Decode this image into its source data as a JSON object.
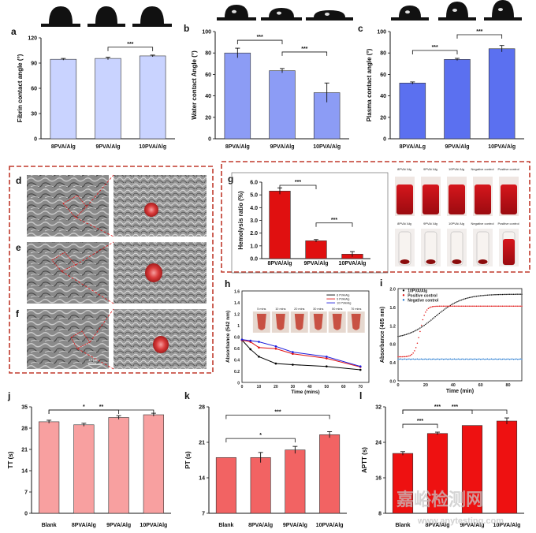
{
  "figure": {
    "colors": {
      "panel_red_dashed": "#c0392b",
      "wm": "#c6c6c6"
    },
    "watermark": {
      "cn": "嘉峪检测网",
      "url": "www.anytesting.com"
    }
  },
  "chart_data": [
    {
      "id": "a",
      "type": "bar",
      "categories": [
        "8PVA/Alg",
        "9PVA/Alg",
        "10PVA/Alg"
      ],
      "values": [
        94.5,
        95.5,
        98.5
      ],
      "errors": [
        1,
        1.5,
        1
      ],
      "ylabel": "Fibrin contact angle (°)",
      "ylim": [
        0,
        120
      ],
      "yticks": [
        0,
        30,
        60,
        90,
        120
      ],
      "color": "#c9d3ff",
      "sig": [
        {
          "from": 1,
          "to": 2,
          "label": "***"
        }
      ]
    },
    {
      "id": "b",
      "type": "bar",
      "categories": [
        "8PVA/Alg",
        "9PVA/Alg",
        "10PVA/Alg"
      ],
      "values": [
        80,
        63.5,
        43
      ],
      "errors": [
        4.5,
        2,
        9
      ],
      "ylabel": "Water contact Angle (°)",
      "ylim": [
        0,
        100
      ],
      "yticks": [
        0,
        20,
        40,
        60,
        80,
        100
      ],
      "color": "#8c9cf5",
      "sig": [
        {
          "from": 0,
          "to": 1,
          "label": "***"
        },
        {
          "from": 1,
          "to": 2,
          "label": "***"
        }
      ]
    },
    {
      "id": "c",
      "type": "bar",
      "categories": [
        "8PVA/ALg",
        "9PVA/Alg",
        "10PVA/Alg"
      ],
      "values": [
        52,
        74,
        84
      ],
      "errors": [
        1,
        1,
        3
      ],
      "ylabel": "Plasma contact angle (°)",
      "ylim": [
        0,
        100
      ],
      "yticks": [
        0,
        20,
        40,
        60,
        80,
        100
      ],
      "color": "#5b70f0",
      "sig": [
        {
          "from": 0,
          "to": 1,
          "label": "***"
        },
        {
          "from": 1,
          "to": 2,
          "label": "***"
        }
      ]
    },
    {
      "id": "g",
      "type": "bar",
      "categories": [
        "8PVA/Alg",
        "9PVA/Alg",
        "10PVA/Alg"
      ],
      "values": [
        5.3,
        1.4,
        0.35
      ],
      "errors": [
        0.25,
        0.1,
        0.2
      ],
      "ylabel": "Hemolysis ratio (%)",
      "ylim": [
        0,
        6
      ],
      "yticks": [
        0,
        1,
        2,
        3,
        4,
        5,
        6
      ],
      "yticklabels": [
        "0.0",
        "1.0",
        "2.0",
        "3.0",
        "4.0",
        "5.0",
        "6.0"
      ],
      "color": "#e01010",
      "sig": [
        {
          "from": 0,
          "to": 1,
          "label": "***"
        },
        {
          "from": 1,
          "to": 2,
          "label": "***"
        }
      ]
    },
    {
      "id": "h",
      "type": "line",
      "xlabel": "Time (mins)",
      "ylabel": "Absorbance (542 nm)",
      "xlim": [
        0,
        75
      ],
      "ylim": [
        0,
        1.6
      ],
      "xticks": [
        0,
        10,
        20,
        30,
        40,
        50,
        60,
        70
      ],
      "yticks": [
        0,
        0.2,
        0.4,
        0.6,
        0.8,
        1.0,
        1.2,
        1.4,
        1.6
      ],
      "yticklabels": [
        "0",
        "0.2",
        "0.4",
        "0.6",
        "0.8",
        "1",
        "1.2",
        "1.4",
        "1.6"
      ],
      "x": [
        0,
        5,
        10,
        20,
        30,
        50,
        70
      ],
      "series": [
        {
          "name": "8 PVA/Alg",
          "color": "#000000",
          "values": [
            0.74,
            0.58,
            0.45,
            0.33,
            0.31,
            0.28,
            0.22
          ]
        },
        {
          "name": "9 PVA/Alg",
          "color": "#e01010",
          "values": [
            0.74,
            0.71,
            0.61,
            0.59,
            0.5,
            0.42,
            0.27
          ]
        },
        {
          "name": "10 PVA/Alg",
          "color": "#1a1adb",
          "values": [
            0.75,
            0.73,
            0.71,
            0.63,
            0.53,
            0.45,
            0.28
          ]
        }
      ],
      "photo_labels": [
        "5 mins",
        "10 mins",
        "20 mins",
        "30 mins",
        "50 mins",
        "70 mins"
      ]
    },
    {
      "id": "i",
      "type": "scatter",
      "xlabel": "Time (min)",
      "ylabel": "Absorbance (405 nm)",
      "xlim": [
        0,
        90
      ],
      "ylim": [
        0,
        2.0
      ],
      "xticks": [
        0,
        20,
        40,
        60,
        80
      ],
      "yticks": [
        0,
        0.4,
        0.8,
        1.2,
        1.6,
        2.0
      ],
      "yticklabels": [
        "0.0",
        "0.4",
        "0.8",
        "1.2",
        "1.6",
        "2.0"
      ],
      "series": [
        {
          "name": "10PVA/Alg",
          "color": "#111111",
          "shape": "sigmoid",
          "y0": 0.9,
          "y1": 1.88,
          "mid": 27,
          "k": 0.1
        },
        {
          "name": "Positive control",
          "color": "#e01010",
          "shape": "sigmoid",
          "y0": 0.52,
          "y1": 1.62,
          "mid": 16,
          "k": 0.5
        },
        {
          "name": "Negative control",
          "color": "#1f77d0",
          "shape": "flat",
          "y0": 0.47
        }
      ]
    },
    {
      "id": "j",
      "type": "bar",
      "categories": [
        "Blank",
        "8PVA/Alg",
        "9PVA/Alg",
        "10PVA/Alg"
      ],
      "values": [
        30.1,
        29.1,
        31.5,
        32.4
      ],
      "errors": [
        0.5,
        0.5,
        0.6,
        0.5
      ],
      "ylabel": "TT (s)",
      "ylim": [
        0,
        35
      ],
      "yticks": [
        0,
        7,
        14,
        21,
        28,
        35
      ],
      "color": "#f8a0a0",
      "sig": [
        {
          "from": 0,
          "to": 2,
          "label": "*"
        },
        {
          "from": 0,
          "to": 3,
          "label": "**"
        }
      ]
    },
    {
      "id": "k",
      "type": "bar",
      "categories": [
        "Blank",
        "8PVA/Alg",
        "9PVA/Alg",
        "10PVA/Alg"
      ],
      "values": [
        18,
        18,
        19.5,
        22.5
      ],
      "errors": [
        0,
        1,
        0.7,
        0.6
      ],
      "ylabel": "PT (s)",
      "ylim": [
        7,
        28
      ],
      "yticks": [
        7,
        14,
        21,
        28
      ],
      "color": "#f26363",
      "sig": [
        {
          "from": 0,
          "to": 2,
          "label": "*"
        },
        {
          "from": 0,
          "to": 3,
          "label": "***"
        }
      ]
    },
    {
      "id": "l",
      "type": "bar",
      "categories": [
        "Blank",
        "8PVA/Alg",
        "9PVA/Alg",
        "10PVA/Alg"
      ],
      "values": [
        21.5,
        26,
        27.8,
        28.8
      ],
      "errors": [
        0.4,
        0.3,
        0,
        0.7
      ],
      "ylabel": "APTT (s)",
      "ylim": [
        8,
        32
      ],
      "yticks": [
        8,
        16,
        24,
        32
      ],
      "color": "#ee1111",
      "sig": [
        {
          "from": 0,
          "to": 1,
          "label": "***"
        },
        {
          "from": 0,
          "to": 2,
          "label": "***"
        },
        {
          "from": 0,
          "to": 3,
          "label": "***"
        }
      ]
    }
  ],
  "panels": {
    "a": "a",
    "b": "b",
    "c": "c",
    "d": "d",
    "e": "e",
    "f": "f",
    "g": "g",
    "h": "h",
    "i": "i",
    "j": "j",
    "k": "k",
    "l": "l"
  },
  "sem": {
    "scale_bar": "10 μm"
  },
  "hemolysis_photos": {
    "top_labels": [
      "8PVA/ Alg",
      "9PVA/ Alg",
      "10PVA/ Alg",
      "Negative control",
      "Positive control"
    ],
    "bottom_labels": [
      "8PVA/ Alg",
      "9PVA/ Alg",
      "10PVA/ Alg",
      "Negative control",
      "Positive control"
    ]
  }
}
